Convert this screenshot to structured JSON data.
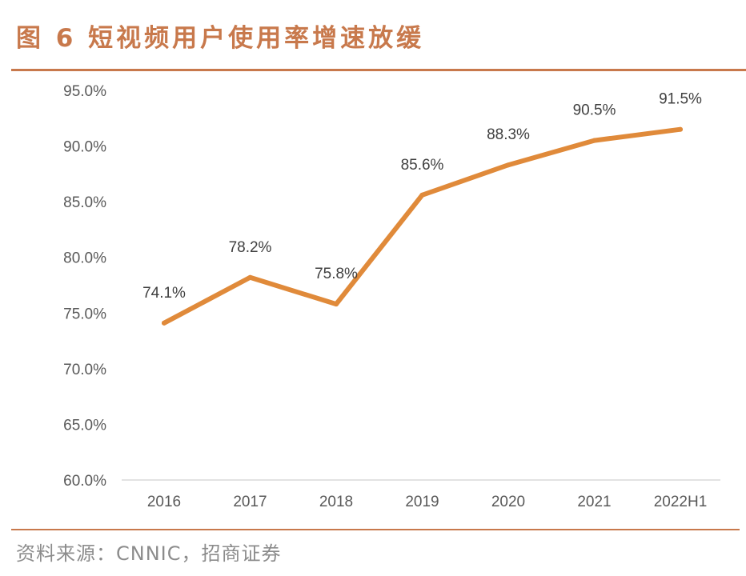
{
  "figure": {
    "title": "图 6 短视频用户使用率增速放缓",
    "source": "资料来源：CNNIC，招商证券"
  },
  "colors": {
    "accent": "#c8794c",
    "line": "#e08a3a",
    "axis": "#d9d9d9",
    "tick_text": "#595959",
    "label_text": "#404040",
    "source_text": "#8c8c8c"
  },
  "chart_data": {
    "type": "line",
    "categories": [
      "2016",
      "2017",
      "2018",
      "2019",
      "2020",
      "2021",
      "2022H1"
    ],
    "series": [
      {
        "values": [
          74.1,
          78.2,
          75.8,
          85.6,
          88.3,
          90.5,
          91.5
        ]
      }
    ],
    "data_labels": [
      "74.1%",
      "78.2%",
      "75.8%",
      "85.6%",
      "88.3%",
      "90.5%",
      "91.5%"
    ],
    "y_ticks": [
      60,
      65,
      70,
      75,
      80,
      85,
      90,
      95
    ],
    "y_tick_labels": [
      "60.0%",
      "65.0%",
      "70.0%",
      "75.0%",
      "80.0%",
      "85.0%",
      "90.0%",
      "95.0%"
    ],
    "ylim": [
      60,
      95
    ],
    "grid": false,
    "legend": "none"
  }
}
